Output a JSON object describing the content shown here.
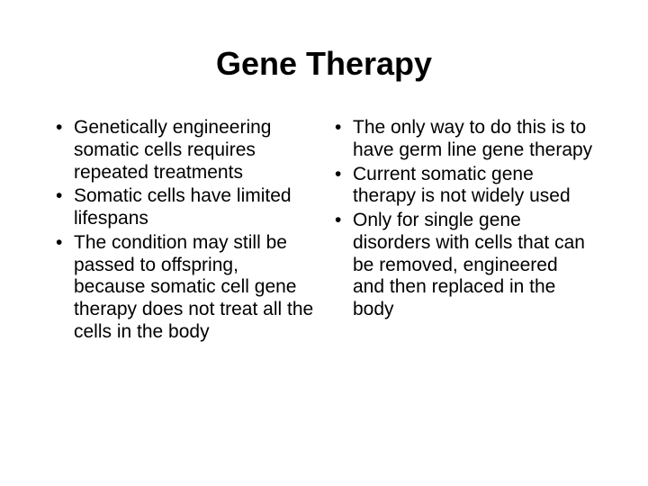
{
  "title": "Gene Therapy",
  "left": {
    "items": [
      "Genetically engineering somatic cells requires repeated treatments",
      "Somatic cells have limited lifespans",
      "The condition may still be passed to offspring, because somatic cell gene therapy does not treat all the cells in the body"
    ]
  },
  "right": {
    "items": [
      "The only way to do this is to have germ line gene therapy",
      "Current somatic gene therapy is not widely used",
      "Only for single gene disorders with cells that can be removed, engineered and then replaced in the body"
    ]
  },
  "style": {
    "background_color": "#ffffff",
    "text_color": "#000000",
    "title_fontsize": 36,
    "body_fontsize": 21,
    "font_family": "Arial"
  }
}
